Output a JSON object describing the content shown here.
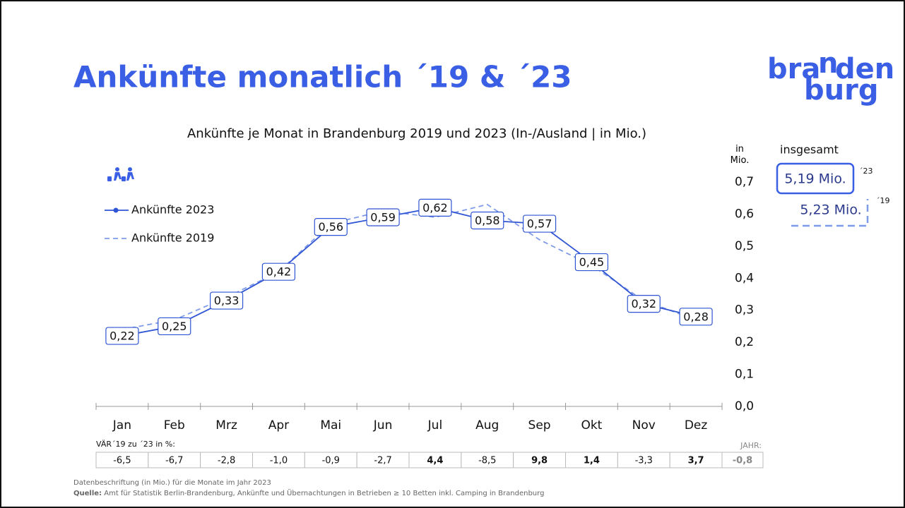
{
  "header": {
    "title": "Ankünfte monatlich ´19 & ´23",
    "logo": [
      "bra",
      "n",
      "den",
      "burg"
    ]
  },
  "chart_data": {
    "type": "line",
    "title": "Ankünfte je Monat in Brandenburg 2019 und 2023 (In-/Ausland | in Mio.)",
    "ylabel": "in Mio.",
    "categories": [
      "Jan",
      "Feb",
      "Mrz",
      "Apr",
      "Mai",
      "Jun",
      "Jul",
      "Aug",
      "Sep",
      "Okt",
      "Nov",
      "Dez"
    ],
    "series": [
      {
        "name": "Ankünfte 2023",
        "color": "#2f55d4",
        "style": "solid",
        "values": [
          0.22,
          0.25,
          0.33,
          0.42,
          0.56,
          0.59,
          0.62,
          0.58,
          0.57,
          0.45,
          0.32,
          0.28
        ],
        "value_labels": [
          "0,22",
          "0,25",
          "0,33",
          "0,42",
          "0,56",
          "0,59",
          "0,62",
          "0,58",
          "0,57",
          "0,45",
          "0,32",
          "0,28"
        ]
      },
      {
        "name": "Ankünfte 2019",
        "color": "#7f9be8",
        "style": "dashed",
        "values": [
          0.24,
          0.27,
          0.34,
          0.42,
          0.57,
          0.61,
          0.59,
          0.63,
          0.52,
          0.44,
          0.33,
          0.27
        ]
      }
    ],
    "ylim": [
      0,
      0.7
    ],
    "yticks": [
      {
        "value": 0,
        "label": "0,0"
      },
      {
        "value": 0.1,
        "label": "0,1"
      },
      {
        "value": 0.2,
        "label": "0,2"
      },
      {
        "value": 0.3,
        "label": "0,3"
      },
      {
        "value": 0.4,
        "label": "0,4"
      },
      {
        "value": 0.5,
        "label": "0,5"
      },
      {
        "value": 0.6,
        "label": "0,6"
      },
      {
        "value": 0.7,
        "label": "0,7"
      }
    ],
    "changes": {
      "label": "VÄR´19 zu ´23 in %:",
      "values": [
        -6.5,
        -6.7,
        -2.8,
        -1.0,
        -0.9,
        -2.7,
        4.4,
        -8.5,
        9.8,
        1.4,
        -3.3,
        3.7
      ],
      "value_labels": [
        "-6,5",
        "-6,7",
        "-2,8",
        "-1,0",
        "-0,9",
        "-2,7",
        "4,4",
        "-8,5",
        "9,8",
        "1,4",
        "-3,3",
        "3,7"
      ],
      "total_label": "JAHR:",
      "total": -0.8,
      "total_value_label": "-0,8"
    }
  },
  "totals": {
    "label": "insgesamt",
    "items": [
      {
        "text": "5,19 Mio.",
        "year": "´23"
      },
      {
        "text": "5,23 Mio.",
        "year": "´19"
      }
    ]
  },
  "footer": {
    "note": "Datenbeschriftung (in Mio.) für die Monate im Jahr 2023",
    "source_label": "Quelle:",
    "source": "Amt für Statistik Berlin-Brandenburg, Ankünfte und Übernachtungen in Betrieben ≥ 10 Betten inkl. Camping in Brandenburg"
  }
}
